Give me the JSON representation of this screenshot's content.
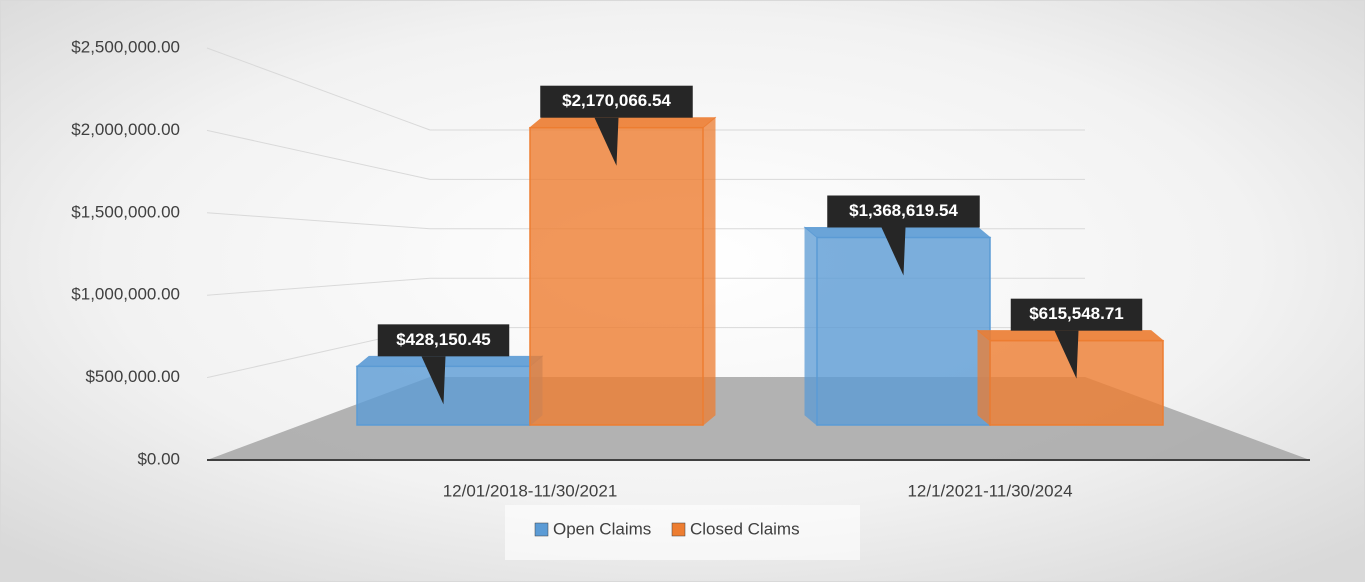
{
  "chart_data": {
    "type": "bar3d",
    "categories": [
      "12/01/2018-11/30/2021",
      "12/1/2021-11/30/2024"
    ],
    "series": [
      {
        "name": "Open Claims",
        "color": "#5b9bd5",
        "values": [
          428150.45,
          1368619.54
        ],
        "value_labels": [
          "$428,150.45",
          "$1,368,619.54"
        ]
      },
      {
        "name": "Closed Claims",
        "color": "#ed7d31",
        "values": [
          2170066.54,
          615548.71
        ],
        "value_labels": [
          "$2,170,066.54",
          "$615,548.71"
        ]
      }
    ],
    "ylim": [
      0,
      2500000
    ],
    "yticks": [
      {
        "value": 0,
        "label": "$0.00"
      },
      {
        "value": 500000,
        "label": "$500,000.00"
      },
      {
        "value": 1000000,
        "label": "$1,000,000.00"
      },
      {
        "value": 1500000,
        "label": "$1,500,000.00"
      },
      {
        "value": 2000000,
        "label": "$2,000,000.00"
      },
      {
        "value": 2500000,
        "label": "$2,500,000.00"
      }
    ],
    "grid": true,
    "legend": "bottom"
  }
}
